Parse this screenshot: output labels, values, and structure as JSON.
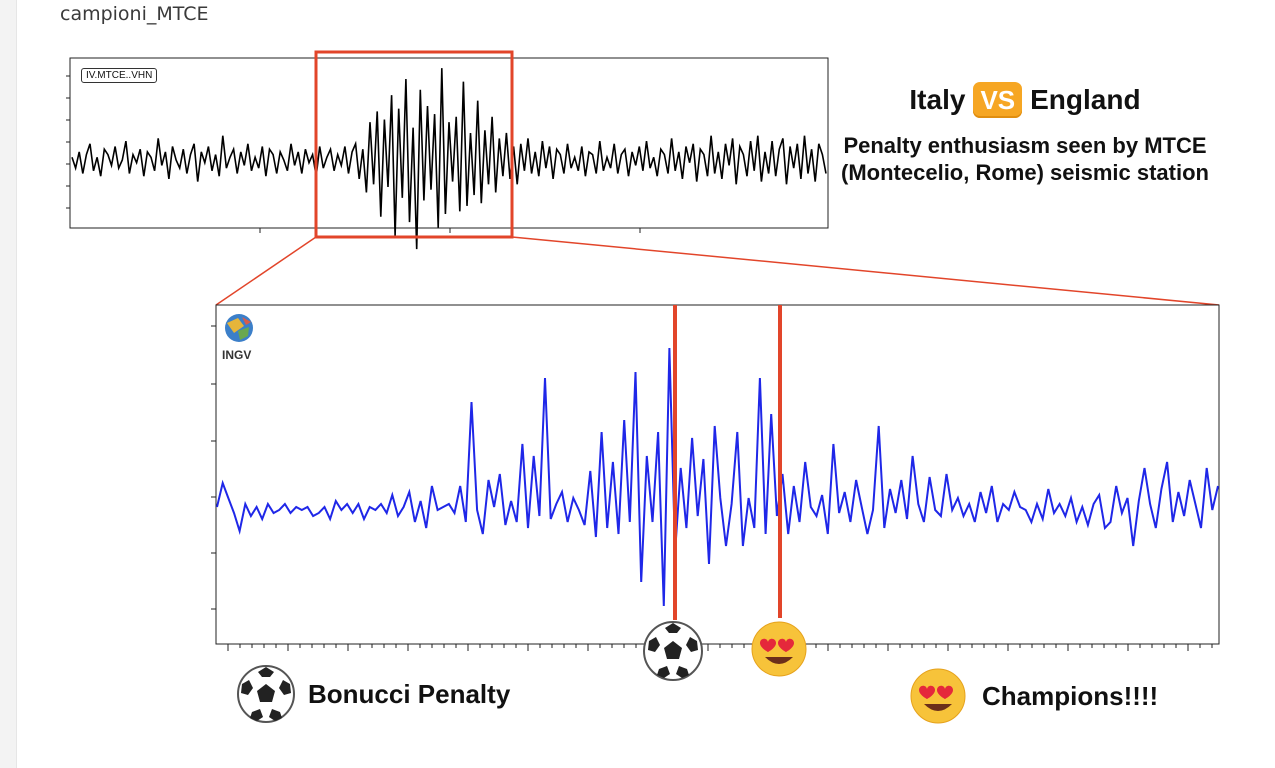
{
  "caption": "campioni_MTCE",
  "title": {
    "team_a": "Italy",
    "vs": "VS",
    "team_b": "England",
    "subtitle": "Penalty enthusiasm seen by MTCE (Montecelio, Rome) seismic station"
  },
  "logo_text": "INGV",
  "annotations": {
    "penalty_label": "Bonucci Penalty",
    "penalty_icon": "soccer-ball-icon",
    "champions_label": "Champions!!!!",
    "champions_icon": "heart-eyes-emoji-icon"
  },
  "colors": {
    "highlight": "#e2452a",
    "zoom_trace": "#1f27e8",
    "overview_trace": "#000000",
    "vs_badge": "#f6a623"
  },
  "chart_data": [
    {
      "type": "line",
      "station_label": "IV.MTCE..VHN",
      "series": [
        {
          "values": [
            0.1,
            -0.3,
            0.3,
            -0.5,
            0.2,
            0.6,
            -0.4,
            0.1,
            -0.6,
            0.4,
            0.2,
            -0.2,
            0.5,
            -0.3,
            0.0,
            0.7,
            -0.5,
            0.2,
            -0.1,
            0.4,
            -0.6,
            0.3,
            0.1,
            -0.4,
            0.8,
            -0.2,
            0.3,
            -0.7,
            0.5,
            0.0,
            -0.3,
            0.4,
            -0.5,
            0.2,
            0.6,
            -0.8,
            0.3,
            -0.1,
            0.5,
            -0.4,
            0.2,
            -0.6,
            0.9,
            -0.3,
            0.1,
            0.4,
            -0.5,
            0.3,
            -0.2,
            0.6,
            -0.4,
            0.1,
            -0.3,
            0.5,
            -0.6,
            0.4,
            0.2,
            -0.5,
            0.3,
            0.0,
            -0.4,
            0.6,
            -0.2,
            0.3,
            -0.5,
            0.4,
            -0.1,
            0.2,
            -0.6,
            0.5,
            -0.3,
            0.1,
            0.4,
            -0.4,
            0.2,
            -0.2,
            0.5,
            -0.5,
            0.3,
            0.6,
            -0.7,
            0.4,
            -1.2,
            1.4,
            -0.9,
            1.8,
            -2.1,
            1.5,
            -1.0,
            2.4,
            -2.8,
            1.9,
            -1.4,
            3.0,
            -2.3,
            1.2,
            -3.3,
            2.6,
            -1.5,
            2.0,
            -1.1,
            1.7,
            -2.5,
            3.4,
            -2.0,
            1.4,
            -0.8,
            1.6,
            -1.9,
            2.9,
            -1.7,
            1.0,
            -1.3,
            2.2,
            -1.6,
            1.1,
            -0.9,
            1.6,
            -1.2,
            0.8,
            -0.6,
            1.0,
            -0.7,
            0.5,
            -0.9,
            0.6,
            -0.4,
            0.8,
            -0.5,
            0.3,
            -0.6,
            0.7,
            -0.3,
            0.5,
            -0.7,
            0.4,
            0.2,
            -0.5,
            0.6,
            -0.3,
            0.1,
            -0.4,
            0.5,
            -0.6,
            0.3,
            0.2,
            -0.5,
            0.7,
            -0.4,
            0.1,
            -0.3,
            0.6,
            -0.5,
            0.2,
            0.4,
            -0.6,
            0.3,
            -0.2,
            0.5,
            -0.4,
            0.7,
            -0.3,
            0.1,
            -0.6,
            0.4,
            0.2,
            -0.5,
            0.8,
            -0.4,
            0.3,
            -0.7,
            0.5,
            -0.1,
            0.6,
            -0.8,
            0.4,
            0.2,
            -0.6,
            0.9,
            -0.5,
            0.3,
            -0.7,
            0.6,
            -0.2,
            0.8,
            -0.9,
            0.5,
            0.2,
            -0.6,
            0.7,
            -0.4,
            0.9,
            -0.8,
            0.3,
            -0.5,
            0.7,
            -0.6,
            0.4,
            0.8,
            -0.9,
            0.5,
            -0.3,
            0.6,
            -0.7,
            0.9,
            -0.5,
            0.4,
            -0.8,
            0.6,
            0.2,
            -0.5
          ]
        }
      ]
    },
    {
      "type": "line",
      "series": [
        {
          "values": [
            0.05,
            0.45,
            0.2,
            -0.05,
            -0.35,
            0.1,
            -0.1,
            0.05,
            -0.15,
            0.1,
            -0.05,
            0.0,
            0.1,
            -0.05,
            0.05,
            0.0,
            0.05,
            -0.1,
            -0.05,
            0.05,
            -0.15,
            0.15,
            0.0,
            0.1,
            -0.05,
            0.1,
            -0.15,
            0.05,
            0.0,
            0.1,
            -0.05,
            0.25,
            -0.1,
            0.05,
            0.3,
            -0.2,
            0.15,
            -0.3,
            0.4,
            0.0,
            0.05,
            0.1,
            -0.05,
            0.4,
            -0.2,
            1.8,
            0.0,
            -0.4,
            0.5,
            0.05,
            0.6,
            -0.25,
            0.15,
            -0.2,
            1.1,
            -0.3,
            0.9,
            -0.1,
            2.2,
            -0.15,
            0.1,
            0.3,
            -0.2,
            0.2,
            0.0,
            -0.25,
            0.65,
            -0.45,
            1.3,
            -0.3,
            0.8,
            -0.4,
            1.5,
            -0.2,
            2.3,
            -1.2,
            0.9,
            -0.2,
            1.3,
            -1.6,
            2.7,
            -0.7,
            0.7,
            -0.3,
            1.2,
            -0.1,
            0.85,
            -0.9,
            1.4,
            0.2,
            -0.6,
            0.1,
            1.3,
            -0.6,
            0.2,
            -0.3,
            2.2,
            -0.4,
            1.6,
            -0.1,
            0.6,
            -0.4,
            0.4,
            -0.2,
            0.8,
            0.05,
            -0.1,
            0.25,
            -0.4,
            1.1,
            -0.05,
            0.3,
            -0.2,
            0.5,
            0.05,
            -0.4,
            0.0,
            1.4,
            -0.3,
            0.35,
            -0.05,
            0.5,
            -0.15,
            0.9,
            0.1,
            -0.2,
            0.55,
            0.0,
            -0.1,
            0.6,
            0.0,
            0.2,
            -0.1,
            0.1,
            -0.2,
            0.3,
            -0.05,
            0.4,
            -0.2,
            0.1,
            0.0,
            0.3,
            0.05,
            0.0,
            -0.2,
            0.1,
            -0.15,
            0.35,
            -0.05,
            0.1,
            -0.1,
            0.2,
            -0.2,
            0.05,
            -0.25,
            0.1,
            0.25,
            -0.3,
            -0.2,
            0.4,
            -0.05,
            0.2,
            -0.6,
            0.15,
            0.7,
            0.1,
            -0.3,
            0.35,
            0.8,
            -0.2,
            0.3,
            -0.1,
            0.5,
            0.1,
            -0.3,
            0.7,
            0.0,
            0.4
          ]
        }
      ],
      "event_lines": [
        "Bonucci Penalty",
        "Champions!!!!"
      ]
    }
  ]
}
